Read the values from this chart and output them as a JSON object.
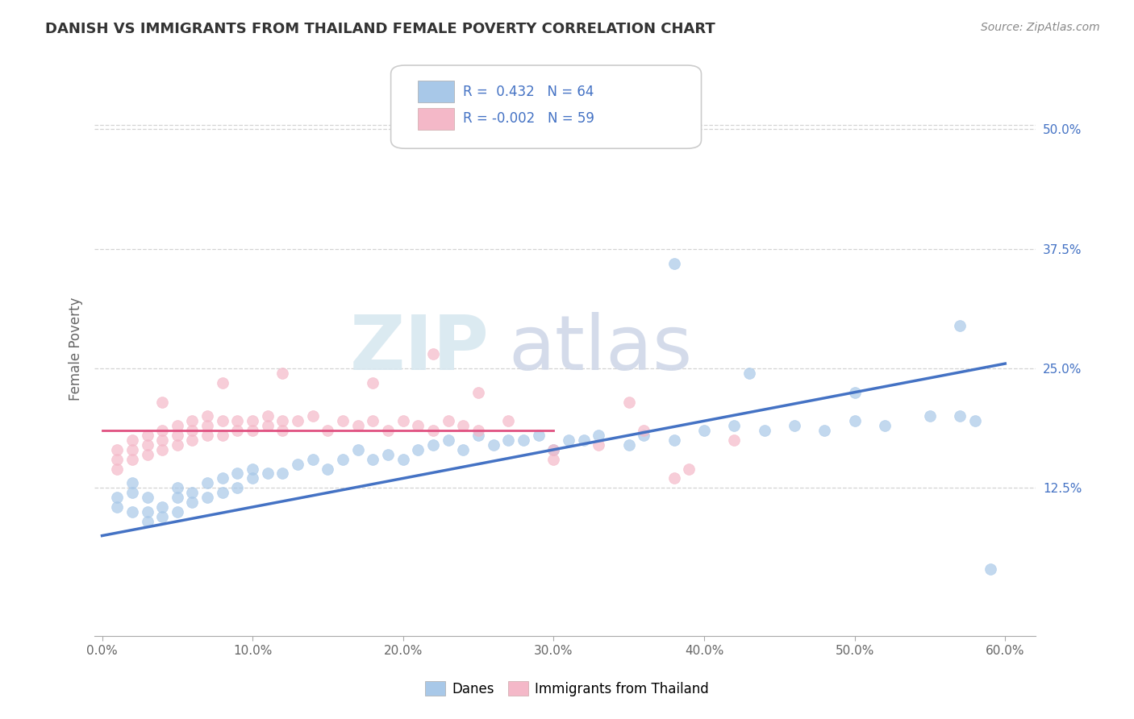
{
  "title": "DANISH VS IMMIGRANTS FROM THAILAND FEMALE POVERTY CORRELATION CHART",
  "source_text": "Source: ZipAtlas.com",
  "ylabel": "Female Poverty",
  "xlim": [
    -0.005,
    0.62
  ],
  "ylim": [
    -0.03,
    0.57
  ],
  "xticks": [
    0.0,
    0.1,
    0.2,
    0.3,
    0.4,
    0.5,
    0.6
  ],
  "xticklabels": [
    "0.0%",
    "10.0%",
    "20.0%",
    "30.0%",
    "40.0%",
    "50.0%",
    "60.0%"
  ],
  "yticks_right": [
    0.125,
    0.25,
    0.375,
    0.5
  ],
  "ytick_right_labels": [
    "12.5%",
    "25.0%",
    "37.5%",
    "50.0%"
  ],
  "blue_color": "#a8c8e8",
  "pink_color": "#f4b8c8",
  "blue_line_color": "#4472c4",
  "pink_line_color": "#e05080",
  "r_blue": 0.432,
  "n_blue": 64,
  "r_pink": -0.002,
  "n_pink": 59,
  "legend_labels": [
    "Danes",
    "Immigrants from Thailand"
  ],
  "watermark_zip": "ZIP",
  "watermark_atlas": "atlas",
  "grid_color": "#c8c8c8",
  "background_color": "#ffffff",
  "danes_x": [
    0.01,
    0.01,
    0.02,
    0.02,
    0.02,
    0.03,
    0.03,
    0.03,
    0.04,
    0.04,
    0.05,
    0.05,
    0.05,
    0.06,
    0.06,
    0.07,
    0.07,
    0.08,
    0.08,
    0.09,
    0.09,
    0.1,
    0.1,
    0.11,
    0.12,
    0.13,
    0.14,
    0.15,
    0.16,
    0.17,
    0.18,
    0.19,
    0.2,
    0.21,
    0.22,
    0.23,
    0.24,
    0.25,
    0.26,
    0.27,
    0.28,
    0.29,
    0.3,
    0.31,
    0.32,
    0.33,
    0.35,
    0.36,
    0.38,
    0.4,
    0.42,
    0.44,
    0.46,
    0.48,
    0.5,
    0.52,
    0.55,
    0.57,
    0.58,
    0.59,
    0.43,
    0.5,
    0.38,
    0.57
  ],
  "danes_y": [
    0.105,
    0.115,
    0.1,
    0.12,
    0.13,
    0.09,
    0.1,
    0.115,
    0.095,
    0.105,
    0.1,
    0.115,
    0.125,
    0.11,
    0.12,
    0.115,
    0.13,
    0.12,
    0.135,
    0.125,
    0.14,
    0.135,
    0.145,
    0.14,
    0.14,
    0.15,
    0.155,
    0.145,
    0.155,
    0.165,
    0.155,
    0.16,
    0.155,
    0.165,
    0.17,
    0.175,
    0.165,
    0.18,
    0.17,
    0.175,
    0.175,
    0.18,
    0.165,
    0.175,
    0.175,
    0.18,
    0.17,
    0.18,
    0.175,
    0.185,
    0.19,
    0.185,
    0.19,
    0.185,
    0.195,
    0.19,
    0.2,
    0.2,
    0.195,
    0.04,
    0.245,
    0.225,
    0.36,
    0.295
  ],
  "thai_x": [
    0.01,
    0.01,
    0.01,
    0.02,
    0.02,
    0.02,
    0.03,
    0.03,
    0.03,
    0.04,
    0.04,
    0.04,
    0.05,
    0.05,
    0.05,
    0.06,
    0.06,
    0.06,
    0.07,
    0.07,
    0.07,
    0.08,
    0.08,
    0.09,
    0.09,
    0.1,
    0.1,
    0.11,
    0.11,
    0.12,
    0.12,
    0.13,
    0.14,
    0.15,
    0.16,
    0.17,
    0.18,
    0.19,
    0.2,
    0.21,
    0.22,
    0.23,
    0.24,
    0.25,
    0.27,
    0.3,
    0.33,
    0.36,
    0.39,
    0.42,
    0.3,
    0.04,
    0.08,
    0.12,
    0.18,
    0.22,
    0.25,
    0.35,
    0.38
  ],
  "thai_y": [
    0.145,
    0.155,
    0.165,
    0.155,
    0.165,
    0.175,
    0.16,
    0.17,
    0.18,
    0.165,
    0.175,
    0.185,
    0.17,
    0.18,
    0.19,
    0.175,
    0.185,
    0.195,
    0.18,
    0.19,
    0.2,
    0.18,
    0.195,
    0.185,
    0.195,
    0.185,
    0.195,
    0.19,
    0.2,
    0.185,
    0.195,
    0.195,
    0.2,
    0.185,
    0.195,
    0.19,
    0.195,
    0.185,
    0.195,
    0.19,
    0.185,
    0.195,
    0.19,
    0.185,
    0.195,
    0.155,
    0.17,
    0.185,
    0.145,
    0.175,
    0.165,
    0.215,
    0.235,
    0.245,
    0.235,
    0.265,
    0.225,
    0.215,
    0.135
  ],
  "blue_line_x": [
    0.0,
    0.6
  ],
  "blue_line_y": [
    0.075,
    0.255
  ],
  "pink_line_x": [
    0.0,
    0.3
  ],
  "pink_line_y": [
    0.185,
    0.185
  ]
}
